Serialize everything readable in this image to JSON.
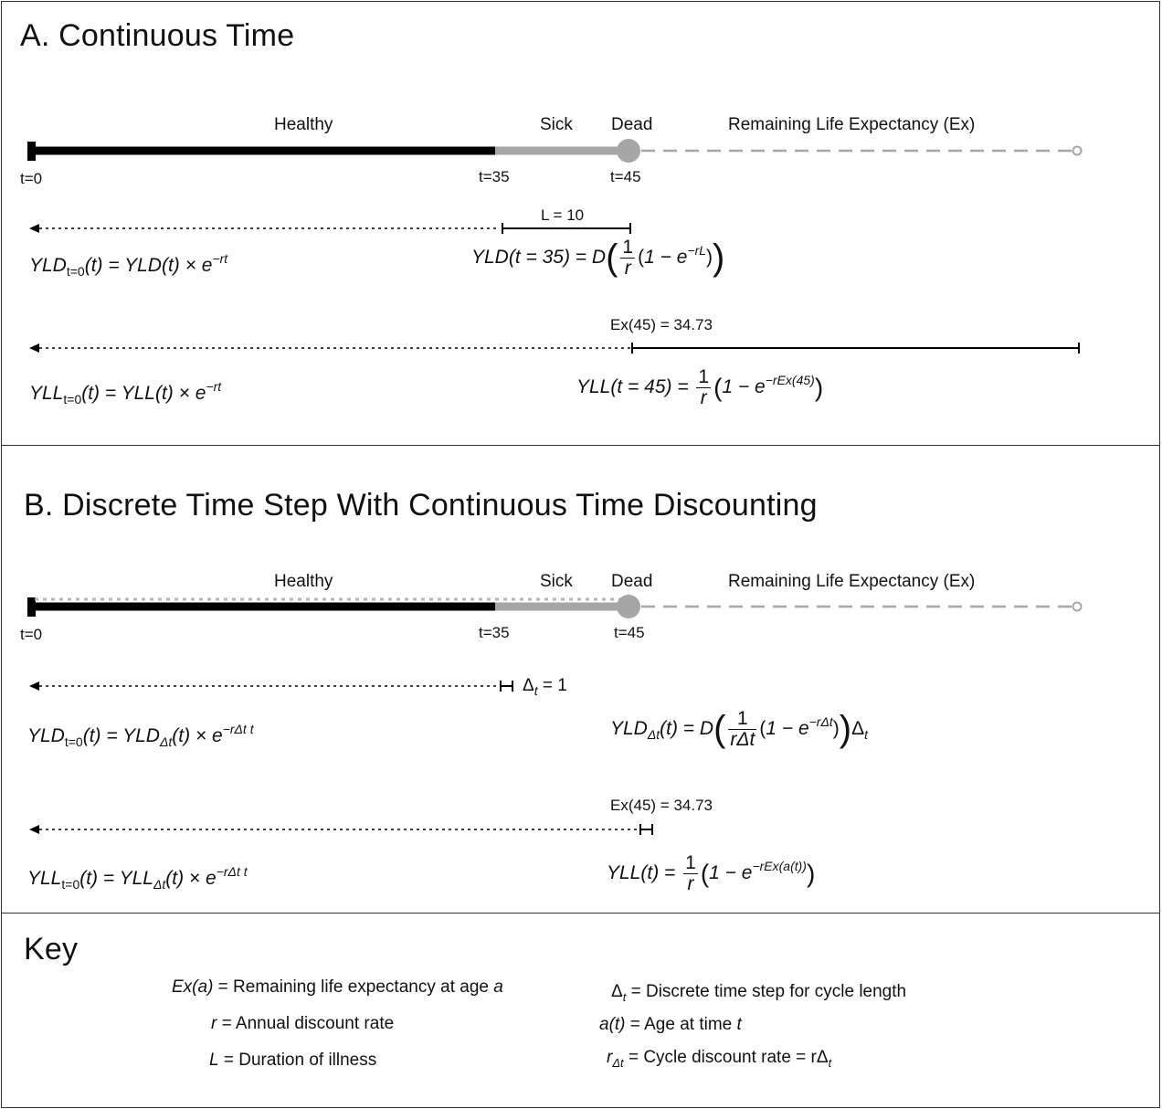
{
  "panel_a": {
    "title": "A. Continuous Time",
    "states": {
      "healthy": "Healthy",
      "sick": "Sick",
      "dead": "Dead",
      "remaining": "Remaining Life Expectancy (Ex)"
    },
    "ticks": {
      "t0": "t=0",
      "t35": "t=35",
      "t45": "t=45"
    },
    "illness_label": "L = 10",
    "ex_label": "Ex(45) = 34.73",
    "yld_discount": {
      "lhs": "YLD",
      "lhs_sub": "t=0",
      "arg": "(t) = ",
      "rhs": "YLD",
      "rhs_arg": "(t) × e",
      "exp": "−rt"
    },
    "yld_formula": {
      "lhs": "YLD",
      "arg": "(t = 35) = D",
      "one": "1",
      "r": "r",
      "inner": "1 − e",
      "exp": "−rL"
    },
    "yll_discount": {
      "lhs": "YLL",
      "lhs_sub": "t=0",
      "arg": "(t) = ",
      "rhs": "YLL",
      "rhs_arg": "(t) × e",
      "exp": "−rt"
    },
    "yll_formula": {
      "lhs": "YLL",
      "arg": "(t = 45) = ",
      "one": "1",
      "r": "r",
      "inner": "1 − e",
      "exp": "−rEx(45)"
    }
  },
  "panel_b": {
    "title": "B. Discrete Time Step With Continuous Time Discounting",
    "states": {
      "healthy": "Healthy",
      "sick": "Sick",
      "dead": "Dead",
      "remaining": "Remaining Life Expectancy (Ex)"
    },
    "ticks": {
      "t0": "t=0",
      "t35": "t=35",
      "t45": "t=45"
    },
    "step_label": "Δ",
    "step_sub": "t",
    "step_value": " = 1",
    "ex_label": "Ex(45) = 34.73",
    "yld_discount": {
      "lhs": "YLD",
      "lhs_sub": "t=0",
      "arg": "(t) = ",
      "rhs": "YLD",
      "rhs_sub": "Δt",
      "rhs_arg": "(t) × e",
      "exp": "−rΔt t"
    },
    "yld_formula": {
      "lhs": "YLD",
      "lhs_sub": "Δt",
      "arg": "(t) = D",
      "one": "1",
      "r": "rΔt",
      "inner": "1 − e",
      "exp": "−rΔt",
      "tail": "Δ",
      "tail_sub": "t"
    },
    "yll_discount": {
      "lhs": "YLL",
      "lhs_sub": "t=0",
      "arg": "(t) = ",
      "rhs": "YLL",
      "rhs_sub": "Δt",
      "rhs_arg": "(t) × e",
      "exp": "−rΔt t"
    },
    "yll_formula": {
      "lhs": "YLL",
      "arg": "(t) = ",
      "one": "1",
      "r": "r",
      "inner": "1 − e",
      "exp": "−rEx(a(t))"
    }
  },
  "key": {
    "title": "Key",
    "left": [
      {
        "sym": "Ex(a)",
        "text": " = Remaining life expectancy at age ",
        "tail": "a"
      },
      {
        "sym": "r",
        "text": " = Annual discount rate",
        "tail": ""
      },
      {
        "sym": "L",
        "text": " = Duration of illness",
        "tail": ""
      }
    ],
    "right": [
      {
        "sym": "Δ",
        "sub": "t",
        "text": " = Discrete time step for cycle length",
        "tail": ""
      },
      {
        "sym": "a(t)",
        "sub": "",
        "text": " = Age at time ",
        "tail": "t"
      },
      {
        "sym": "r",
        "sub": "Δt",
        "text": " = Cycle discount rate = rΔ",
        "tail": "t"
      }
    ]
  },
  "colors": {
    "healthy_bar": "#000000",
    "sick_bar": "#a6a6a6",
    "dashed": "#a6a6a6",
    "border": "#333333"
  }
}
